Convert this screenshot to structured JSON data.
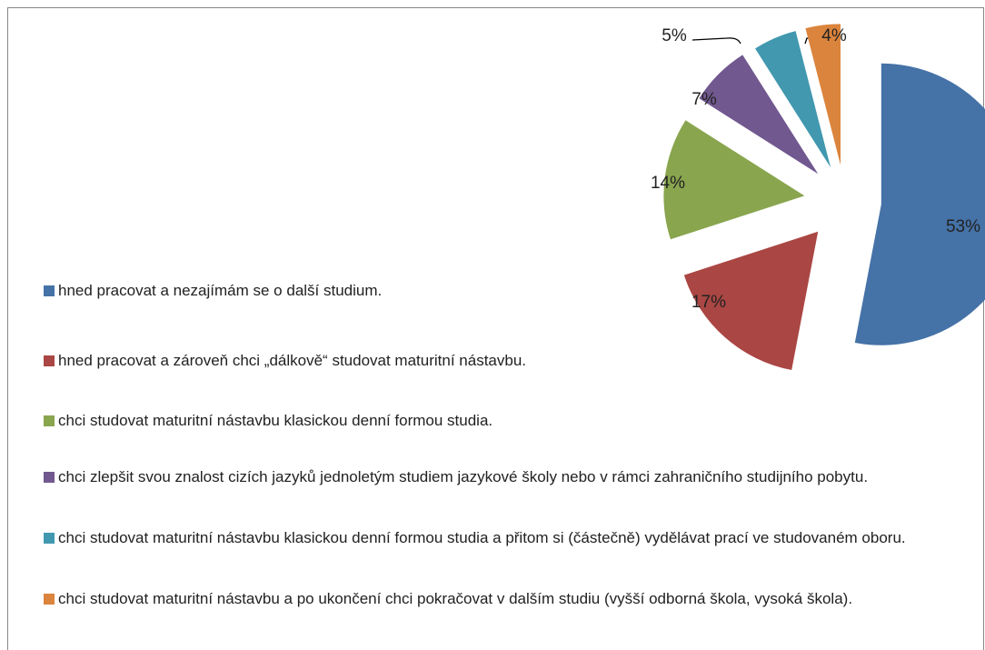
{
  "chart_data": {
    "type": "pie",
    "categories": [
      "hned pracovat a nezajímám se o další studium.",
      "hned pracovat a zároveň chci „dálkově“ studovat maturitní nástavbu.",
      "chci studovat maturitní nástavbu klasickou denní formou studia.",
      "chci zlepšit svou znalost cizích jazyků jednoletým studiem jazykové školy nebo v rámci zahraničního studijního pobytu.",
      "chci studovat maturitní nástavbu klasickou denní formou studia a přitom si (částečně) vydělávat prací ve studovaném oboru.",
      "chci studovat maturitní nástavbu a po ukončení chci pokračovat v dalším studiu (vyšší odborná škola, vysoká škola)."
    ],
    "values": [
      53,
      17,
      14,
      7,
      5,
      4
    ],
    "value_labels": [
      "53%",
      "17%",
      "14%",
      "7%",
      "5%",
      "4%"
    ],
    "colors": [
      "#4572a7",
      "#aa4643",
      "#89a54e",
      "#71588f",
      "#4198af",
      "#db843d"
    ],
    "legend": "left"
  }
}
